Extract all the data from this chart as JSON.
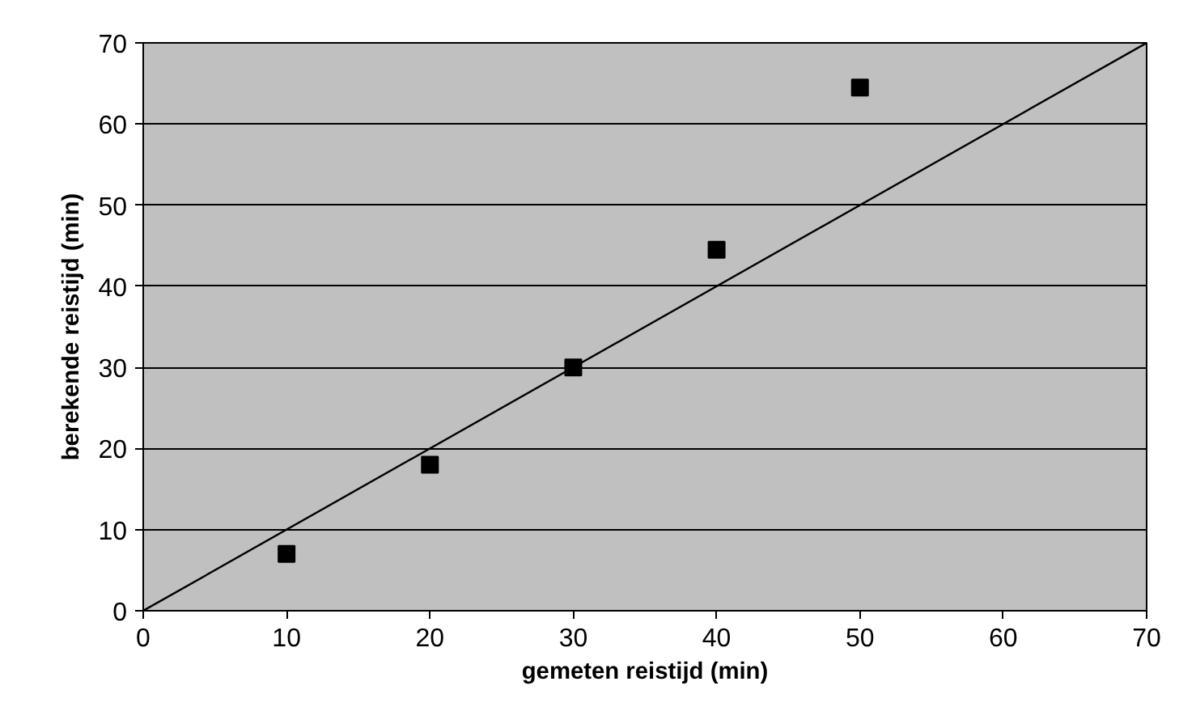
{
  "chart_data": {
    "type": "scatter",
    "xlabel": "gemeten reistijd (min)",
    "ylabel": "berekende reistijd (min)",
    "xlim": [
      0,
      70
    ],
    "ylim": [
      0,
      70
    ],
    "xticks": [
      0,
      10,
      20,
      30,
      40,
      50,
      60,
      70
    ],
    "yticks": [
      0,
      10,
      20,
      30,
      40,
      50,
      60,
      70
    ],
    "grid": "y",
    "marker": "square",
    "series": [
      {
        "color": "#000000",
        "x": [
          10,
          20,
          30,
          40,
          50
        ],
        "values": [
          7,
          18,
          30,
          44.5,
          64.5
        ]
      },
      {
        "type": "line",
        "color": "#000000",
        "x": [
          0,
          70
        ],
        "values": [
          0,
          70
        ],
        "marker": "none"
      }
    ]
  }
}
